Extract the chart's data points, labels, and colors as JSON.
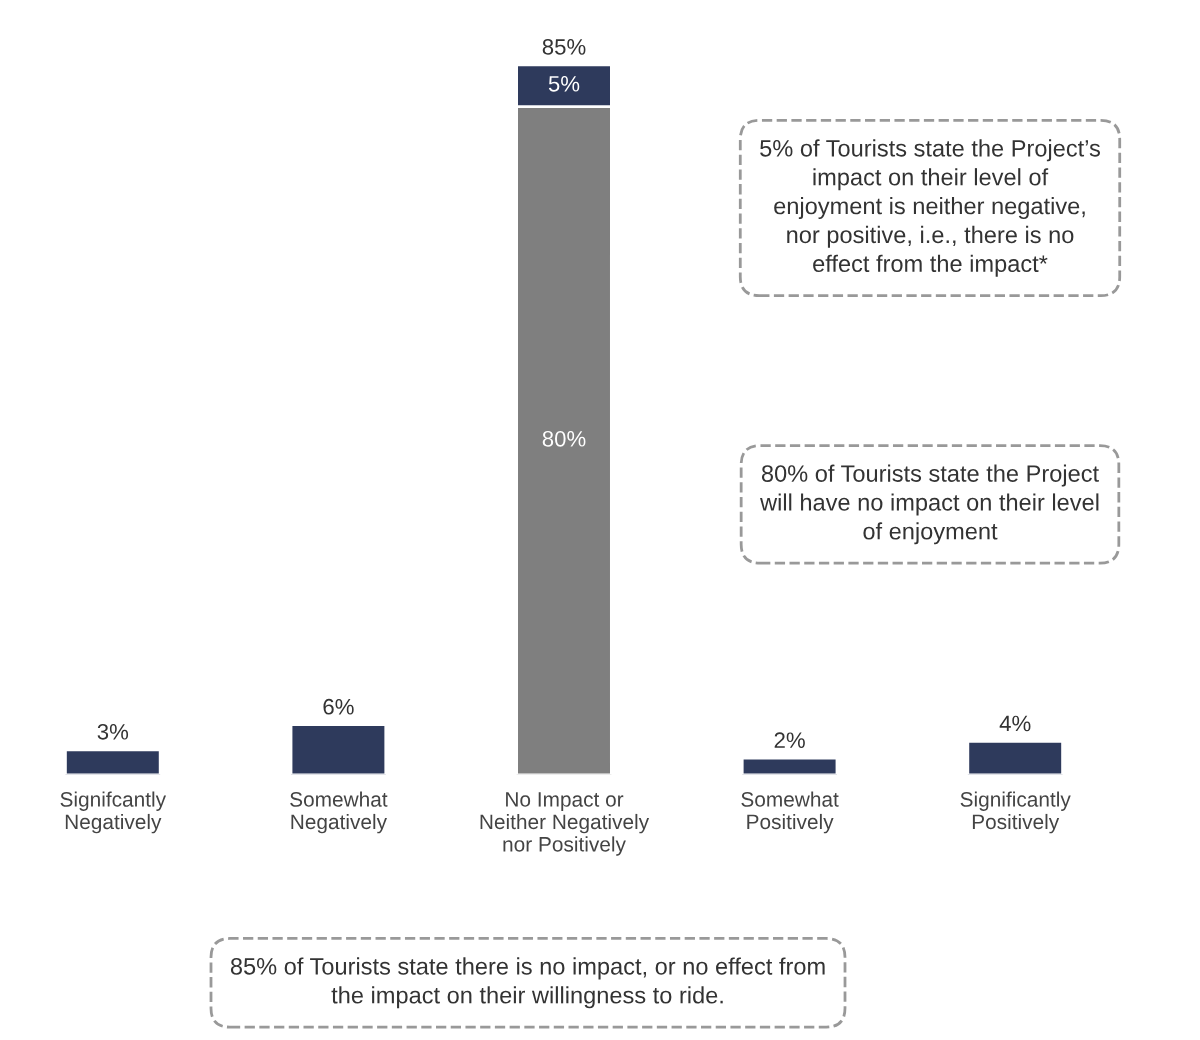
{
  "chart_data": {
    "type": "bar",
    "stacked": true,
    "categories": [
      "Signifcantly\nNegatively",
      "Somewhat\nNegatively",
      "No Impact or\nNeither Negatively\nnor Positively",
      "Somewhat\nPositively",
      "Significantly\nPositively"
    ],
    "series": [
      {
        "color": "#7f7f7f",
        "values": [
          null,
          null,
          80,
          null,
          null
        ],
        "value_labels": [
          null,
          null,
          "80%",
          null,
          null
        ]
      },
      {
        "color": "#2e3a5c",
        "values": [
          3,
          6,
          5,
          2,
          4
        ],
        "value_labels": [
          null,
          null,
          "5%",
          null,
          null
        ]
      }
    ],
    "totals": [
      "3%",
      "6%",
      "85%",
      "2%",
      "4%"
    ],
    "annotations": [
      "5% of Tourists state the Project’s\nimpact on their level of\nenjoyment is neither negative,\nnor positive, i.e., there is no\neffect from the impact*",
      "80% of Tourists state the Project\nwill have no impact on their level\nof enjoyment",
      "85% of Tourists state there is no impact, or no effect from\nthe impact on their willingness to ride."
    ],
    "grid": false,
    "legend": false
  }
}
